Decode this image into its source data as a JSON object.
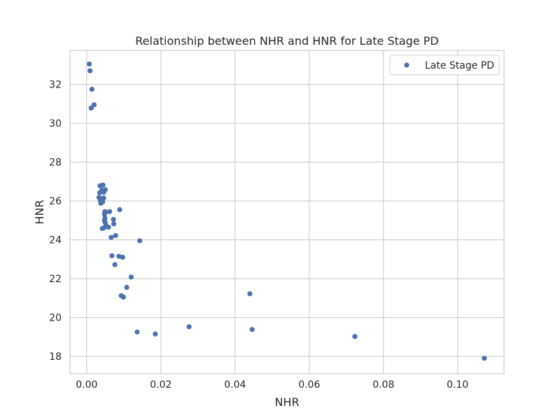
{
  "chart_data": {
    "type": "scatter",
    "title": "Relationship between NHR and HNR for Late Stage PD",
    "xlabel": "NHR",
    "ylabel": "HNR",
    "xlim": [
      -0.0045,
      0.1125
    ],
    "ylim": [
      17.1,
      33.75
    ],
    "xticks": [
      "0.00",
      "0.02",
      "0.04",
      "0.06",
      "0.08",
      "0.10"
    ],
    "yticks": [
      "18",
      "20",
      "22",
      "24",
      "26",
      "28",
      "30",
      "32"
    ],
    "grid": true,
    "legend_position": "top-right",
    "series": [
      {
        "name": "Late Stage PD",
        "color": "#4c72b0",
        "points": [
          [
            0.0007,
            33.05
          ],
          [
            0.0009,
            32.7
          ],
          [
            0.0014,
            31.75
          ],
          [
            0.002,
            30.95
          ],
          [
            0.0012,
            30.78
          ],
          [
            0.0036,
            26.78
          ],
          [
            0.0044,
            26.82
          ],
          [
            0.005,
            26.58
          ],
          [
            0.0046,
            26.45
          ],
          [
            0.0041,
            26.55
          ],
          [
            0.0035,
            26.42
          ],
          [
            0.0033,
            26.18
          ],
          [
            0.0041,
            26.12
          ],
          [
            0.0046,
            26.15
          ],
          [
            0.0037,
            26.02
          ],
          [
            0.0043,
            25.95
          ],
          [
            0.0038,
            25.88
          ],
          [
            0.0049,
            25.45
          ],
          [
            0.0051,
            25.42
          ],
          [
            0.0048,
            25.32
          ],
          [
            0.0062,
            25.45
          ],
          [
            0.0089,
            25.55
          ],
          [
            0.0049,
            25.12
          ],
          [
            0.0048,
            24.98
          ],
          [
            0.0072,
            25.05
          ],
          [
            0.005,
            24.88
          ],
          [
            0.0073,
            24.82
          ],
          [
            0.0052,
            24.72
          ],
          [
            0.0059,
            24.65
          ],
          [
            0.0047,
            24.62
          ],
          [
            0.0042,
            24.58
          ],
          [
            0.0066,
            24.12
          ],
          [
            0.0078,
            24.22
          ],
          [
            0.0143,
            23.95
          ],
          [
            0.0068,
            23.18
          ],
          [
            0.0087,
            23.15
          ],
          [
            0.0097,
            23.1
          ],
          [
            0.0076,
            22.72
          ],
          [
            0.012,
            22.08
          ],
          [
            0.0108,
            21.55
          ],
          [
            0.0093,
            21.12
          ],
          [
            0.0099,
            21.05
          ],
          [
            0.044,
            21.22
          ],
          [
            0.0276,
            19.52
          ],
          [
            0.0136,
            19.25
          ],
          [
            0.0185,
            19.15
          ],
          [
            0.0446,
            19.38
          ],
          [
            0.0723,
            19.02
          ],
          [
            0.1072,
            17.9
          ]
        ]
      }
    ]
  }
}
